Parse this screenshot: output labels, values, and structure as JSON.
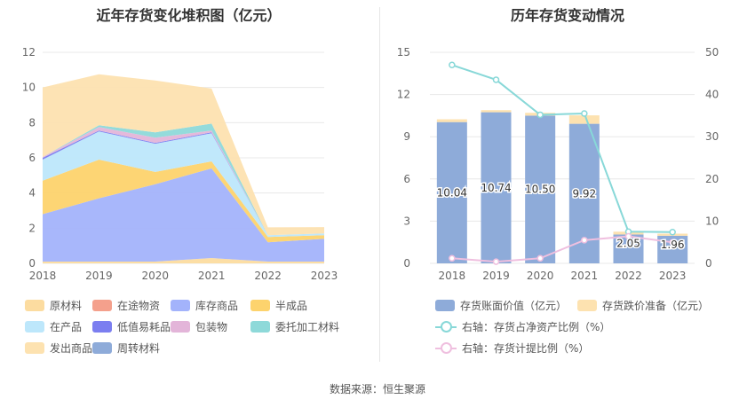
{
  "source_text": "数据来源：恒生聚源",
  "chart_data": [
    {
      "type": "area",
      "title": "近年存货变化堆积图（亿元）",
      "x": [
        "2018",
        "2019",
        "2020",
        "2021",
        "2022",
        "2023"
      ],
      "ylim": [
        0,
        12
      ],
      "yticks": [
        "0",
        "2",
        "4",
        "6",
        "8",
        "10",
        "12"
      ],
      "grid": true,
      "legend_position": "bottom",
      "series": [
        {
          "name": "原材料",
          "color": "#fcdca0",
          "values": [
            0.1,
            0.1,
            0.1,
            0.3,
            0.1,
            0.1
          ]
        },
        {
          "name": "在途物资",
          "color": "#f4a08c",
          "values": [
            0.0,
            0.0,
            0.0,
            0.0,
            0.0,
            0.0
          ]
        },
        {
          "name": "库存商品",
          "color": "#a3b3fb",
          "values": [
            2.7,
            3.6,
            4.4,
            5.1,
            1.1,
            1.3
          ]
        },
        {
          "name": "半成品",
          "color": "#fdd36d",
          "values": [
            1.9,
            2.2,
            0.7,
            0.4,
            0.3,
            0.2
          ]
        },
        {
          "name": "在产品",
          "color": "#bde7fb",
          "values": [
            1.2,
            1.6,
            1.6,
            1.6,
            0.1,
            0.1
          ]
        },
        {
          "name": "低值易耗品",
          "color": "#7b7ef0",
          "values": [
            0.1,
            0.05,
            0.05,
            0.05,
            0.0,
            0.0
          ]
        },
        {
          "name": "包装物",
          "color": "#e3b5d9",
          "values": [
            0.05,
            0.2,
            0.3,
            0.1,
            0.0,
            0.0
          ]
        },
        {
          "name": "委托加工材料",
          "color": "#8ed9d9",
          "values": [
            0.0,
            0.1,
            0.3,
            0.4,
            0.0,
            0.0
          ]
        },
        {
          "name": "发出商品",
          "color": "#fde2b0",
          "values": [
            3.95,
            2.9,
            2.95,
            1.99,
            0.45,
            0.36
          ]
        },
        {
          "name": "周转材料",
          "color": "#8eabd9",
          "values": [
            0.0,
            0.0,
            0.0,
            0.0,
            0.0,
            0.0
          ]
        }
      ]
    },
    {
      "type": "bar",
      "title": "历年存货变动情况",
      "categories": [
        "2018",
        "2019",
        "2020",
        "2021",
        "2022",
        "2023"
      ],
      "ylim_left": [
        0,
        15
      ],
      "yticks_left": [
        "0",
        "3",
        "6",
        "9",
        "12",
        "15"
      ],
      "ylim_right": [
        0,
        50
      ],
      "yticks_right": [
        "0",
        "10",
        "20",
        "30",
        "40",
        "50"
      ],
      "grid": true,
      "legend_position": "bottom",
      "series": [
        {
          "name": "存货账面价值（亿元）",
          "color": "#8eabd9",
          "axis": "left",
          "type": "bar",
          "values": [
            10.04,
            10.74,
            10.5,
            9.92,
            2.05,
            1.96
          ],
          "labels": [
            "10.04",
            "10.74",
            "10.50",
            "9.92",
            "2.05",
            "1.96"
          ]
        },
        {
          "name": "存货跌价准备（亿元）",
          "color": "#fde2b0",
          "axis": "left",
          "type": "bar",
          "values": [
            0.2,
            0.15,
            0.2,
            0.6,
            0.2,
            0.15
          ]
        },
        {
          "name": "右轴：存货占净资产比例（%）",
          "color": "#88d8d8",
          "axis": "right",
          "type": "line",
          "values": [
            47.0,
            43.5,
            35.2,
            35.5,
            7.5,
            7.4
          ]
        },
        {
          "name": "右轴：存货计提比例（%）",
          "color": "#efbfdf",
          "axis": "right",
          "type": "line",
          "values": [
            1.2,
            0.4,
            1.2,
            5.5,
            6.4,
            5.0
          ]
        }
      ]
    }
  ]
}
